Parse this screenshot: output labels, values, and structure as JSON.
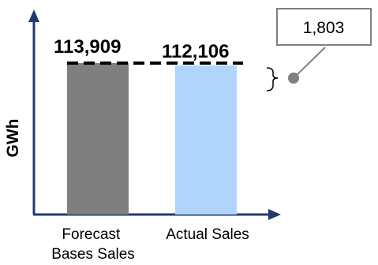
{
  "chart_data": {
    "type": "bar",
    "categories": [
      "Forecast Bases Sales",
      "Actual Sales"
    ],
    "category_lines": [
      [
        "Forecast",
        "Bases Sales"
      ],
      [
        "Actual Sales"
      ]
    ],
    "values": [
      113909,
      112106
    ],
    "value_labels": [
      "113,909",
      "112,106"
    ],
    "colors": [
      "#7f7f7f",
      "#b0d4fb"
    ],
    "title": "",
    "xlabel": "",
    "ylabel": "GWh",
    "ylim": [
      0,
      130000
    ],
    "grid": false,
    "legend": "none",
    "annotation": {
      "text": "1,803",
      "value": 1803,
      "meaning": "difference between the two bars, shown by a dashed reference line at the forecast level and a bracket"
    },
    "axis_color": "#1f3a6e",
    "callout_color": "#7f7f7f"
  }
}
